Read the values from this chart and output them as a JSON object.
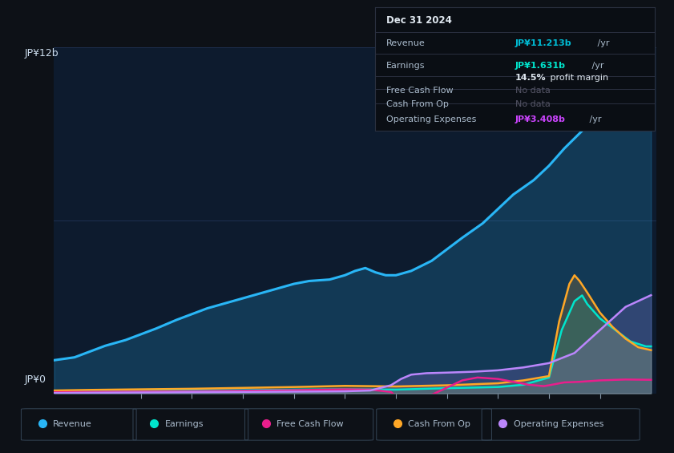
{
  "bg_color": "#0d1117",
  "plot_bg_color": "#0d1b2e",
  "title_box": {
    "date": "Dec 31 2024",
    "revenue_label": "Revenue",
    "revenue_value": "JP¥11.213b",
    "revenue_value2": " /yr",
    "revenue_color": "#00bcd4",
    "earnings_label": "Earnings",
    "earnings_value": "JP¥1.631b",
    "earnings_value2": " /yr",
    "earnings_color": "#00e5cc",
    "margin_bold": "14.5%",
    "margin_text": " profit margin",
    "fcf_label": "Free Cash Flow",
    "fcf_value": "No data",
    "cfo_label": "Cash From Op",
    "cfo_value": "No data",
    "opex_label": "Operating Expenses",
    "opex_value": "JP¥3.408b",
    "opex_value2": " /yr",
    "opex_color": "#cc44ff",
    "nodata_color": "#555566"
  },
  "ylabel_top": "JP¥12b",
  "ylabel_bot": "JP¥0",
  "ylim": [
    0,
    12
  ],
  "xlim": [
    2013.3,
    2025.1
  ],
  "xticks": [
    2015,
    2016,
    2017,
    2018,
    2019,
    2020,
    2021,
    2022,
    2023,
    2024
  ],
  "series": {
    "revenue": {
      "color": "#29b6f6",
      "fill_color": "#29b6f6",
      "fill_alpha": 0.2,
      "label": "Revenue",
      "x": [
        2013.3,
        2013.7,
        2014.0,
        2014.3,
        2014.7,
        2015.0,
        2015.3,
        2015.7,
        2016.0,
        2016.3,
        2016.7,
        2017.0,
        2017.3,
        2017.7,
        2018.0,
        2018.3,
        2018.7,
        2019.0,
        2019.2,
        2019.4,
        2019.6,
        2019.8,
        2020.0,
        2020.3,
        2020.7,
        2021.0,
        2021.3,
        2021.7,
        2022.0,
        2022.3,
        2022.7,
        2023.0,
        2023.3,
        2023.7,
        2024.0,
        2024.3,
        2024.7,
        2025.0
      ],
      "y": [
        1.15,
        1.25,
        1.45,
        1.65,
        1.85,
        2.05,
        2.25,
        2.55,
        2.75,
        2.95,
        3.15,
        3.3,
        3.45,
        3.65,
        3.8,
        3.9,
        3.95,
        4.1,
        4.25,
        4.35,
        4.2,
        4.1,
        4.1,
        4.25,
        4.6,
        5.0,
        5.4,
        5.9,
        6.4,
        6.9,
        7.4,
        7.9,
        8.5,
        9.2,
        10.0,
        10.5,
        11.0,
        11.213
      ]
    },
    "earnings": {
      "color": "#00e5cc",
      "fill_color": "#00e5cc",
      "fill_alpha": 0.15,
      "label": "Earnings",
      "x": [
        2013.3,
        2014.0,
        2015.0,
        2016.0,
        2017.0,
        2018.0,
        2019.0,
        2020.0,
        2021.0,
        2022.0,
        2022.5,
        2023.0,
        2023.25,
        2023.5,
        2023.65,
        2023.75,
        2024.0,
        2024.3,
        2024.6,
        2024.9,
        2025.0
      ],
      "y": [
        0.07,
        0.08,
        0.09,
        0.1,
        0.11,
        0.13,
        0.14,
        0.13,
        0.18,
        0.22,
        0.3,
        0.55,
        2.2,
        3.2,
        3.4,
        3.1,
        2.6,
        2.2,
        1.8,
        1.631,
        1.631
      ]
    },
    "free_cash_flow": {
      "color": "#e91e8c",
      "label": "Free Cash Flow",
      "x": [
        2013.3,
        2014.0,
        2015.0,
        2016.0,
        2017.0,
        2018.0,
        2019.0,
        2019.5,
        2019.9,
        2020.1,
        2020.3,
        2020.5,
        2020.7,
        2021.0,
        2021.3,
        2021.6,
        2022.0,
        2022.3,
        2022.6,
        2022.9,
        2023.0,
        2023.3,
        2023.6,
        2024.0,
        2024.5,
        2025.0
      ],
      "y": [
        0.04,
        0.05,
        0.06,
        0.07,
        0.09,
        0.11,
        0.14,
        0.13,
        0.05,
        -0.25,
        -0.55,
        -0.35,
        -0.05,
        0.2,
        0.45,
        0.55,
        0.5,
        0.4,
        0.3,
        0.25,
        0.28,
        0.38,
        0.4,
        0.45,
        0.48,
        0.47
      ]
    },
    "cash_from_op": {
      "color": "#ffa726",
      "fill_color": "#ffa726",
      "fill_alpha": 0.18,
      "label": "Cash From Op",
      "x": [
        2013.3,
        2014.0,
        2015.0,
        2016.0,
        2017.0,
        2018.0,
        2019.0,
        2020.0,
        2021.0,
        2022.0,
        2022.5,
        2023.0,
        2023.2,
        2023.4,
        2023.5,
        2023.6,
        2023.75,
        2024.0,
        2024.25,
        2024.5,
        2024.75,
        2025.0
      ],
      "y": [
        0.1,
        0.12,
        0.14,
        0.16,
        0.19,
        0.22,
        0.26,
        0.24,
        0.28,
        0.35,
        0.45,
        0.6,
        2.5,
        3.8,
        4.1,
        3.9,
        3.5,
        2.8,
        2.3,
        1.9,
        1.6,
        1.5
      ]
    },
    "operating_expenses": {
      "color": "#bb86fc",
      "fill_color": "#bb86fc",
      "fill_alpha": 0.18,
      "label": "Operating Expenses",
      "x": [
        2013.3,
        2014.0,
        2015.0,
        2016.0,
        2017.0,
        2018.0,
        2019.0,
        2019.5,
        2019.9,
        2020.1,
        2020.3,
        2020.6,
        2021.0,
        2021.5,
        2022.0,
        2022.5,
        2023.0,
        2023.5,
        2024.0,
        2024.5,
        2025.0
      ],
      "y": [
        0.01,
        0.02,
        0.03,
        0.04,
        0.05,
        0.06,
        0.07,
        0.1,
        0.28,
        0.5,
        0.65,
        0.7,
        0.72,
        0.75,
        0.8,
        0.9,
        1.05,
        1.4,
        2.2,
        3.0,
        3.408
      ]
    }
  },
  "legend": [
    {
      "label": "Revenue",
      "color": "#29b6f6"
    },
    {
      "label": "Earnings",
      "color": "#00e5cc"
    },
    {
      "label": "Free Cash Flow",
      "color": "#e91e8c"
    },
    {
      "label": "Cash From Op",
      "color": "#ffa726"
    },
    {
      "label": "Operating Expenses",
      "color": "#bb86fc"
    }
  ],
  "grid_color": "#1e3050",
  "tick_color": "#8899aa",
  "text_color": "#aabbcc",
  "label_color": "#ccddee"
}
